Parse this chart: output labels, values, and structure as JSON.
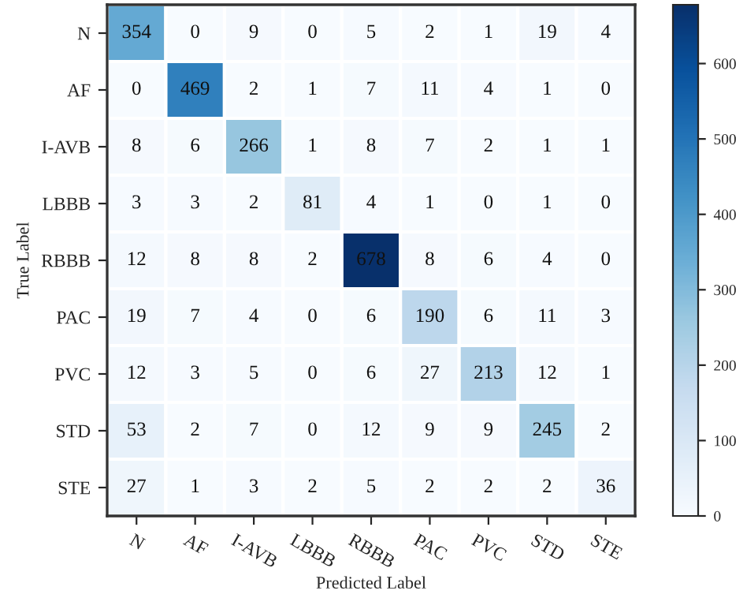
{
  "chart_data": {
    "type": "heatmap",
    "xlabel": "Predicted Label",
    "ylabel": "True Label",
    "categories": [
      "N",
      "AF",
      "I-AVB",
      "LBBB",
      "RBBB",
      "PAC",
      "PVC",
      "STD",
      "STE"
    ],
    "y_categories": [
      "N",
      "AF",
      "I-AVB",
      "LBBB",
      "RBBB",
      "PAC",
      "PVC",
      "STD",
      "STE"
    ],
    "cells": [
      [
        354,
        0,
        9,
        0,
        5,
        2,
        1,
        19,
        4
      ],
      [
        0,
        469,
        2,
        1,
        7,
        11,
        4,
        1,
        0
      ],
      [
        8,
        6,
        266,
        1,
        8,
        7,
        2,
        1,
        1
      ],
      [
        3,
        3,
        2,
        81,
        4,
        1,
        0,
        1,
        0
      ],
      [
        12,
        8,
        8,
        2,
        678,
        8,
        6,
        4,
        0
      ],
      [
        19,
        7,
        4,
        0,
        6,
        190,
        6,
        11,
        3
      ],
      [
        12,
        3,
        5,
        0,
        6,
        27,
        213,
        12,
        1
      ],
      [
        53,
        2,
        7,
        0,
        12,
        9,
        9,
        245,
        2
      ],
      [
        27,
        1,
        3,
        2,
        5,
        2,
        2,
        2,
        36
      ]
    ],
    "clim": [
      0,
      678
    ],
    "cticks": [
      0,
      100,
      200,
      300,
      400,
      500,
      600
    ],
    "data_labels": true
  }
}
